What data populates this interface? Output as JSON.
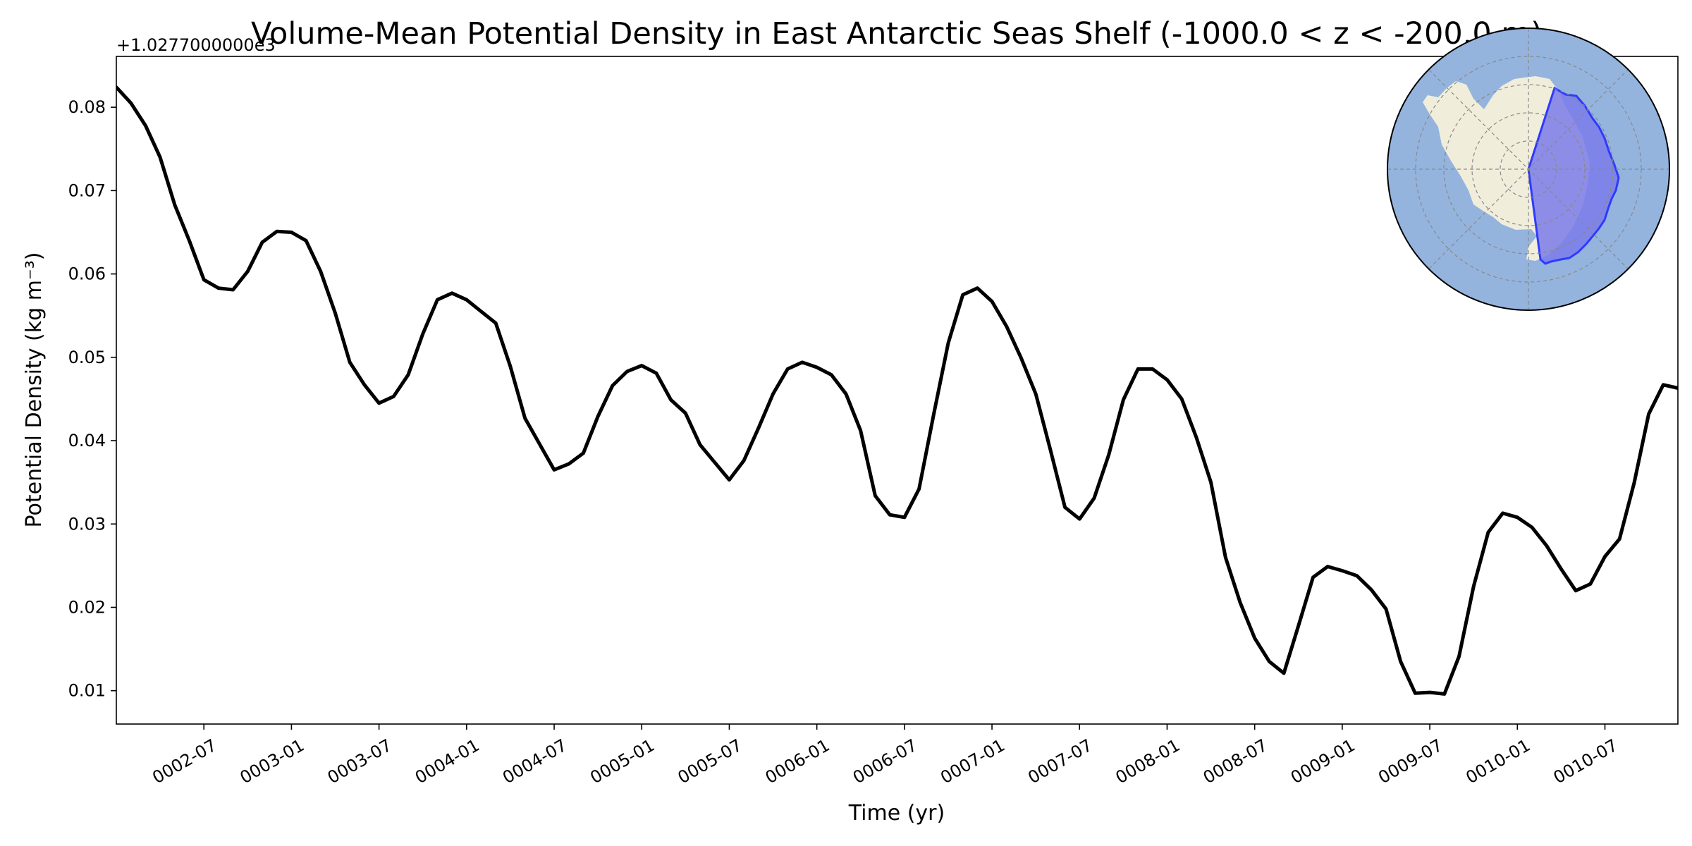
{
  "chart_data": {
    "type": "line",
    "title": "Volume-Mean Potential Density in East Antarctic Seas Shelf (-1000.0 < z < -200.0 m)",
    "xlabel": "Time (yr)",
    "ylabel": "Potential Density (kg m⁻³)",
    "offset_label": "+1.0277000000e3",
    "x_tick_labels": [
      "0002-07",
      "0003-01",
      "0003-07",
      "0004-01",
      "0004-07",
      "0005-01",
      "0005-07",
      "0006-01",
      "0006-07",
      "0007-01",
      "0007-07",
      "0008-01",
      "0008-07",
      "0009-01",
      "0009-07",
      "0010-01",
      "0010-07"
    ],
    "y_tick_labels": [
      "0.01",
      "0.02",
      "0.03",
      "0.04",
      "0.05",
      "0.06",
      "0.07",
      "0.08"
    ],
    "yticks": [
      0.01,
      0.02,
      0.03,
      0.04,
      0.05,
      0.06,
      0.07,
      0.08
    ],
    "ylim": [
      0.006,
      0.0861
    ],
    "xlim": [
      0.0,
      107.0
    ],
    "grid": false,
    "legend": "none",
    "inset": "south-polar map, top-right, East Antarctic shelf region highlighted",
    "colors": {
      "line": "#000000",
      "ocean": "#94b4de",
      "land": "#f0eedb",
      "region_fill": "#7b7bea",
      "region_edge": "#2e3aff"
    },
    "series": [
      {
        "x": [
          "0002-01",
          "0002-02",
          "0002-03",
          "0002-04",
          "0002-05",
          "0002-06",
          "0002-07",
          "0002-08",
          "0002-09",
          "0002-10",
          "0002-11",
          "0002-12",
          "0003-01",
          "0003-02",
          "0003-03",
          "0003-04",
          "0003-05",
          "0003-06",
          "0003-07",
          "0003-08",
          "0003-09",
          "0003-10",
          "0003-11",
          "0003-12",
          "0004-01",
          "0004-02",
          "0004-03",
          "0004-04",
          "0004-05",
          "0004-06",
          "0004-07",
          "0004-08",
          "0004-09",
          "0004-10",
          "0004-11",
          "0004-12",
          "0005-01",
          "0005-02",
          "0005-03",
          "0005-04",
          "0005-05",
          "0005-06",
          "0005-07",
          "0005-08",
          "0005-09",
          "0005-10",
          "0005-11",
          "0005-12",
          "0006-01",
          "0006-02",
          "0006-03",
          "0006-04",
          "0006-05",
          "0006-06",
          "0006-07",
          "0006-08",
          "0006-09",
          "0006-10",
          "0006-11",
          "0006-12",
          "0007-01",
          "0007-02",
          "0007-03",
          "0007-04",
          "0007-05",
          "0007-06",
          "0007-07",
          "0007-08",
          "0007-09",
          "0007-10",
          "0007-11",
          "0007-12",
          "0008-01",
          "0008-02",
          "0008-03",
          "0008-04",
          "0008-05",
          "0008-06",
          "0008-07",
          "0008-08",
          "0008-09",
          "0008-10",
          "0008-11",
          "0008-12",
          "0009-01",
          "0009-02",
          "0009-03",
          "0009-04",
          "0009-05",
          "0009-06",
          "0009-07",
          "0009-08",
          "0009-09",
          "0009-10",
          "0009-11",
          "0009-12",
          "0010-01",
          "0010-02",
          "0010-03",
          "0010-04",
          "0010-05",
          "0010-06",
          "0010-07",
          "0010-08",
          "0010-09",
          "0010-10",
          "0010-11",
          "0010-12"
        ],
        "values": [
          0.0824,
          0.0805,
          0.0778,
          0.074,
          0.0683,
          0.064,
          0.0593,
          0.0583,
          0.0581,
          0.0603,
          0.0638,
          0.0651,
          0.065,
          0.064,
          0.0603,
          0.0553,
          0.0494,
          0.0467,
          0.0445,
          0.0453,
          0.0479,
          0.0528,
          0.0569,
          0.0577,
          0.0569,
          0.0555,
          0.0541,
          0.0489,
          0.0427,
          0.0396,
          0.0365,
          0.0372,
          0.0385,
          0.0429,
          0.0466,
          0.0483,
          0.049,
          0.0481,
          0.0449,
          0.0433,
          0.0395,
          0.0374,
          0.0353,
          0.0376,
          0.0415,
          0.0456,
          0.0486,
          0.0494,
          0.0488,
          0.0479,
          0.0456,
          0.0412,
          0.0334,
          0.0311,
          0.0308,
          0.0342,
          0.0431,
          0.0517,
          0.0575,
          0.0583,
          0.0567,
          0.0537,
          0.0499,
          0.0456,
          0.0389,
          0.032,
          0.0306,
          0.0331,
          0.0383,
          0.0449,
          0.0486,
          0.0486,
          0.0473,
          0.045,
          0.0404,
          0.035,
          0.026,
          0.0206,
          0.0163,
          0.0135,
          0.0121,
          0.0178,
          0.0236,
          0.0249,
          0.0244,
          0.0238,
          0.0221,
          0.0198,
          0.0135,
          0.0097,
          0.0098,
          0.0096,
          0.0141,
          0.0225,
          0.029,
          0.0313,
          0.0308,
          0.0296,
          0.0274,
          0.0246,
          0.022,
          0.0228,
          0.0261,
          0.0282,
          0.0349,
          0.0432,
          0.0467,
          0.0463
        ]
      }
    ]
  }
}
